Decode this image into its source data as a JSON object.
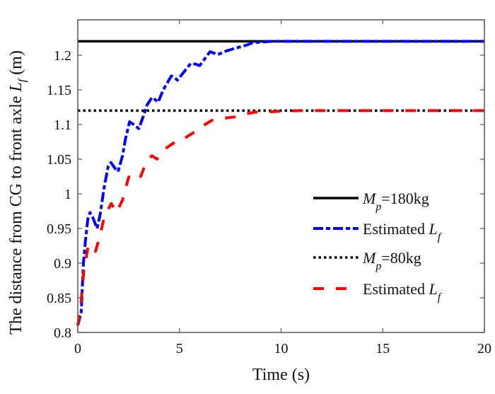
{
  "chart_data": {
    "type": "line",
    "title": "",
    "xlabel": "Time (s)",
    "ylabel": {
      "prefix": "The distance from CG to front axle ",
      "symbol": "L",
      "subscript": "f",
      "suffix": " (m)"
    },
    "xlim": [
      0,
      20
    ],
    "ylim": [
      0.8,
      1.23
    ],
    "xticks": [
      0,
      5,
      10,
      15,
      20
    ],
    "xtick_labels": [
      "0",
      "5",
      "10",
      "15",
      "20"
    ],
    "yticks": [
      0.8,
      0.85,
      0.9,
      0.95,
      1.0,
      1.05,
      1.1,
      1.15,
      1.2
    ],
    "ytick_labels": [
      "0.8",
      "0.85",
      "0.9",
      "0.95",
      "1",
      "1.05",
      "1.1",
      "1.15",
      "1.2"
    ],
    "grid": false,
    "legend_position": "center-right",
    "series": [
      {
        "name": "Mp=180kg",
        "legend": {
          "symbol": "M",
          "subscript": "p",
          "text": "=180kg"
        },
        "color": "#000000",
        "style": "solid",
        "x": [
          0,
          20
        ],
        "y": [
          1.22,
          1.22
        ]
      },
      {
        "name": "Estimated Lf (Mp=180kg)",
        "legend": {
          "text": "Estimated ",
          "symbol": "L",
          "subscript": "f"
        },
        "color": "#0000FF",
        "style": "dashdot",
        "x": [
          0,
          0.17,
          0.28,
          0.38,
          0.5,
          0.6,
          0.75,
          0.95,
          1.1,
          1.3,
          1.5,
          1.63,
          1.8,
          1.98,
          2.2,
          2.35,
          2.55,
          2.75,
          3.0,
          3.2,
          3.4,
          3.65,
          3.8,
          3.95,
          4.2,
          4.6,
          4.75,
          4.9,
          5.2,
          5.55,
          5.8,
          6.0,
          6.25,
          6.5,
          6.7,
          6.9,
          7.3,
          7.75,
          8.0,
          8.35,
          8.6,
          9.05,
          9.5,
          10,
          12,
          15,
          20
        ],
        "y": [
          0.81,
          0.83,
          0.9,
          0.933,
          0.965,
          0.973,
          0.965,
          0.95,
          0.97,
          1.01,
          1.04,
          1.045,
          1.038,
          1.032,
          1.055,
          1.08,
          1.104,
          1.1,
          1.094,
          1.11,
          1.128,
          1.139,
          1.136,
          1.132,
          1.15,
          1.17,
          1.168,
          1.164,
          1.175,
          1.188,
          1.187,
          1.185,
          1.195,
          1.205,
          1.203,
          1.201,
          1.206,
          1.21,
          1.212,
          1.215,
          1.218,
          1.219,
          1.22,
          1.22,
          1.22,
          1.22,
          1.22
        ]
      },
      {
        "name": "Mp=80kg",
        "legend": {
          "symbol": "M",
          "subscript": "p",
          "text": "=80kg"
        },
        "color": "#000000",
        "style": "dotted",
        "x": [
          0,
          20
        ],
        "y": [
          1.12,
          1.12
        ]
      },
      {
        "name": "Estimated Lf (Mp=80kg)",
        "legend": {
          "text": "Estimated ",
          "symbol": "L",
          "subscript": "f"
        },
        "color": "#FF0000",
        "style": "dashed",
        "x": [
          0,
          0.15,
          0.3,
          0.52,
          0.7,
          0.87,
          1.05,
          1.3,
          1.5,
          1.65,
          1.9,
          2.2,
          2.5,
          2.8,
          3.05,
          3.4,
          3.65,
          3.9,
          4.3,
          4.85,
          5.1,
          5.4,
          5.85,
          6.2,
          6.6,
          7.2,
          7.75,
          8.2,
          8.75,
          9.3,
          9.85,
          11,
          13,
          16,
          20
        ],
        "y": [
          0.81,
          0.84,
          0.89,
          0.926,
          0.925,
          0.917,
          0.935,
          0.966,
          0.978,
          0.986,
          0.973,
          0.991,
          1.024,
          1.027,
          1.022,
          1.048,
          1.055,
          1.05,
          1.065,
          1.076,
          1.077,
          1.083,
          1.091,
          1.099,
          1.106,
          1.109,
          1.111,
          1.115,
          1.118,
          1.118,
          1.119,
          1.12,
          1.12,
          1.12,
          1.12
        ]
      }
    ]
  }
}
